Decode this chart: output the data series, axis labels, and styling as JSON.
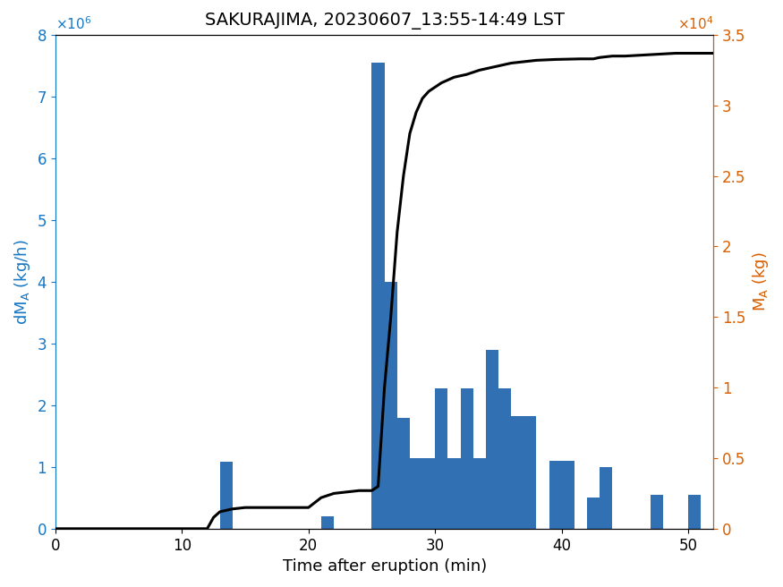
{
  "title": "SAKURAJIMA, 20230607_13:55-14:49 LST",
  "xlabel": "Time after eruption (min)",
  "bar_data": [
    [
      13.5,
      1080000.0
    ],
    [
      21.5,
      200000.0
    ],
    [
      25.5,
      7550000.0
    ],
    [
      26.5,
      4000000.0
    ],
    [
      27.5,
      1800000.0
    ],
    [
      28.5,
      1150000.0
    ],
    [
      29.5,
      1150000.0
    ],
    [
      30.5,
      2270000.0
    ],
    [
      31.5,
      1150000.0
    ],
    [
      32.5,
      2270000.0
    ],
    [
      33.5,
      1150000.0
    ],
    [
      34.5,
      2900000.0
    ],
    [
      35.5,
      2270000.0
    ],
    [
      36.5,
      1820000.0
    ],
    [
      37.5,
      1820000.0
    ],
    [
      39.5,
      1100000.0
    ],
    [
      40.5,
      1100000.0
    ],
    [
      42.5,
      500000.0
    ],
    [
      43.5,
      1000000.0
    ],
    [
      47.5,
      550000.0
    ],
    [
      50.5,
      550000.0
    ]
  ],
  "bar_color": "#3070b3",
  "bar_width": 1.0,
  "line_x": [
    0,
    5,
    10,
    11,
    12,
    12.5,
    13,
    14,
    15,
    16,
    17,
    18,
    19,
    20,
    21,
    22,
    23,
    24,
    24.5,
    25,
    25.5,
    26,
    26.5,
    27,
    27.5,
    28,
    28.5,
    29,
    29.5,
    30,
    30.5,
    31,
    31.5,
    32,
    32.5,
    33,
    33.5,
    34,
    34.5,
    35,
    35.5,
    36,
    36.5,
    37,
    37.5,
    38,
    38.5,
    39,
    39.5,
    40,
    40.5,
    41,
    41.5,
    42,
    42.5,
    43,
    44,
    45,
    46,
    47,
    48,
    49,
    50,
    51,
    52
  ],
  "line_y": [
    0,
    0,
    0,
    0,
    0,
    800.0,
    1200.0,
    1400.0,
    1500.0,
    1500.0,
    1500.0,
    1500.0,
    1500.0,
    1500.0,
    2200.0,
    2500.0,
    2600.0,
    2700.0,
    2700.0,
    2700.0,
    3000.0,
    10000.0,
    15000.0,
    21000.0,
    25000.0,
    28000.0,
    29500.0,
    30500.0,
    31000.0,
    31300.0,
    31600.0,
    31800.0,
    32000.0,
    32100.0,
    32200.0,
    32350.0,
    32500.0,
    32600.0,
    32700.0,
    32800.0,
    32900.0,
    33000.0,
    33050.0,
    33100.0,
    33150.0,
    33200.0,
    33220.0,
    33240.0,
    33260.0,
    33270.0,
    33280.0,
    33290.0,
    33300.0,
    33300.0,
    33300.0,
    33400.0,
    33500.0,
    33500.0,
    33550.0,
    33600.0,
    33650.0,
    33700.0,
    33700.0,
    33700.0,
    33700.0
  ],
  "xlim": [
    0,
    52
  ],
  "ylim_left": [
    0,
    8000000.0
  ],
  "ylim_right": [
    0,
    35000.0
  ],
  "xticks": [
    0,
    10,
    20,
    30,
    40,
    50
  ],
  "yticks_left": [
    0,
    1000000.0,
    2000000.0,
    3000000.0,
    4000000.0,
    5000000.0,
    6000000.0,
    7000000.0,
    8000000.0
  ],
  "yticks_right": [
    0,
    5000.0,
    10000.0,
    15000.0,
    20000.0,
    25000.0,
    30000.0,
    35000.0
  ],
  "ytick_labels_right": [
    "0",
    "0.5",
    "1",
    "1.5",
    "2",
    "2.5",
    "3",
    "3.5"
  ],
  "line_color": "black",
  "left_label_color": "#1777C4",
  "right_label_color": "#D95F00",
  "title_fontsize": 14,
  "label_fontsize": 13,
  "tick_fontsize": 12,
  "line_width": 2.2
}
